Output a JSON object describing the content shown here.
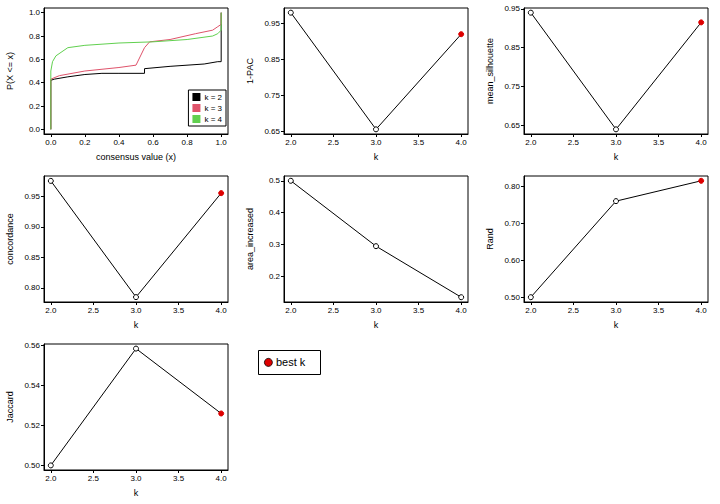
{
  "chart_data": [
    {
      "type": "line",
      "xlabel": "consensus value (x)",
      "ylabel": "P(X <= x)",
      "xlim": [
        -0.04,
        1.04
      ],
      "ylim": [
        -0.04,
        1.04
      ],
      "xticks": [
        {
          "value": 0,
          "label": "0.0"
        },
        0.2,
        0.4,
        0.6,
        0.8,
        {
          "value": 1,
          "label": "1.0"
        }
      ],
      "yticks": [
        {
          "value": 0,
          "label": "0.0"
        },
        0.2,
        0.4,
        0.6,
        0.8,
        {
          "value": 1,
          "label": "1.0"
        }
      ],
      "legend": "bottom right",
      "grid": false,
      "series": [
        {
          "name": "k = 2",
          "color": "#000000",
          "x": [
            0,
            0,
            0.02,
            0.1,
            0.2,
            0.3,
            0.4,
            0.5,
            0.55,
            0.55,
            0.7,
            0.9,
            0.98,
            1,
            1
          ],
          "values": [
            0,
            0.42,
            0.43,
            0.45,
            0.47,
            0.48,
            0.48,
            0.48,
            0.48,
            0.52,
            0.54,
            0.56,
            0.58,
            0.58,
            1.0
          ]
        },
        {
          "name": "k = 3",
          "color": "#df536b",
          "x": [
            0,
            0,
            0.05,
            0.2,
            0.4,
            0.5,
            0.55,
            0.58,
            0.7,
            0.85,
            0.95,
            0.98,
            1,
            1
          ],
          "values": [
            0,
            0.43,
            0.46,
            0.5,
            0.53,
            0.55,
            0.7,
            0.75,
            0.77,
            0.82,
            0.85,
            0.88,
            0.9,
            1.0
          ]
        },
        {
          "name": "k = 4",
          "color": "#61d04f",
          "x": [
            0,
            0,
            0.01,
            0.03,
            0.1,
            0.2,
            0.4,
            0.6,
            0.8,
            0.95,
            0.98,
            1,
            1
          ],
          "values": [
            0,
            0.5,
            0.58,
            0.63,
            0.7,
            0.72,
            0.74,
            0.75,
            0.77,
            0.8,
            0.82,
            0.85,
            1.0
          ]
        }
      ]
    },
    {
      "type": "line",
      "xlabel": "k",
      "ylabel": "1-PAC",
      "xlim": [
        1.92,
        4.08
      ],
      "ylim": [
        0.642,
        0.993
      ],
      "xticks": [
        {
          "value": 2,
          "label": "2.0"
        },
        2.5,
        {
          "value": 3,
          "label": "3.0"
        },
        3.5,
        {
          "value": 4,
          "label": "4.0"
        }
      ],
      "yticks": [
        0.65,
        0.75,
        0.85,
        0.95
      ],
      "grid": false,
      "series": [
        {
          "color": "#000000",
          "marker": "circle",
          "x": [
            2,
            3,
            4
          ],
          "values": [
            0.98,
            0.655,
            0.92
          ],
          "colors": [
            "#000000",
            "#000000",
            "#dd0000"
          ]
        }
      ]
    },
    {
      "type": "line",
      "xlabel": "k",
      "ylabel": "mean_silhouette",
      "xlim": [
        1.92,
        4.08
      ],
      "ylim": [
        0.628,
        0.952
      ],
      "xticks": [
        {
          "value": 2,
          "label": "2.0"
        },
        2.5,
        {
          "value": 3,
          "label": "3.0"
        },
        3.5,
        {
          "value": 4,
          "label": "4.0"
        }
      ],
      "yticks": [
        0.65,
        0.75,
        0.85,
        0.95
      ],
      "grid": false,
      "series": [
        {
          "color": "#000000",
          "marker": "circle",
          "x": [
            2,
            3,
            4
          ],
          "values": [
            0.94,
            0.64,
            0.915
          ],
          "colors": [
            "#000000",
            "#000000",
            "#dd0000"
          ]
        }
      ]
    },
    {
      "type": "line",
      "xlabel": "k",
      "ylabel": "concordance",
      "xlim": [
        1.92,
        4.08
      ],
      "ylim": [
        0.777,
        0.983
      ],
      "xticks": [
        {
          "value": 2,
          "label": "2.0"
        },
        2.5,
        {
          "value": 3,
          "label": "3.0"
        },
        3.5,
        {
          "value": 4,
          "label": "4.0"
        }
      ],
      "yticks": [
        {
          "value": 0.8,
          "label": "0.80"
        },
        0.85,
        {
          "value": 0.9,
          "label": "0.90"
        },
        0.95
      ],
      "grid": false,
      "series": [
        {
          "color": "#000000",
          "marker": "circle",
          "x": [
            2,
            3,
            4
          ],
          "values": [
            0.975,
            0.785,
            0.955
          ],
          "colors": [
            "#000000",
            "#000000",
            "#dd0000"
          ]
        }
      ]
    },
    {
      "type": "line",
      "xlabel": "k",
      "ylabel": "area_increased",
      "xlim": [
        1.92,
        4.08
      ],
      "ylim": [
        0.12,
        0.515
      ],
      "xticks": [
        {
          "value": 2,
          "label": "2.0"
        },
        2.5,
        {
          "value": 3,
          "label": "3.0"
        },
        3.5,
        {
          "value": 4,
          "label": "4.0"
        }
      ],
      "yticks": [
        0.2,
        0.3,
        0.4,
        0.5
      ],
      "grid": false,
      "series": [
        {
          "color": "#000000",
          "marker": "circle",
          "x": [
            2,
            3,
            4
          ],
          "values": [
            0.5,
            0.295,
            0.135
          ],
          "colors": [
            "#000000",
            "#000000",
            "#000000"
          ]
        }
      ]
    },
    {
      "type": "line",
      "xlabel": "k",
      "ylabel": "Rand",
      "xlim": [
        1.92,
        4.08
      ],
      "ylim": [
        0.487,
        0.828
      ],
      "xticks": [
        {
          "value": 2,
          "label": "2.0"
        },
        2.5,
        {
          "value": 3,
          "label": "3.0"
        },
        3.5,
        {
          "value": 4,
          "label": "4.0"
        }
      ],
      "yticks": [
        {
          "value": 0.5,
          "label": "0.50"
        },
        {
          "value": 0.6,
          "label": "0.60"
        },
        {
          "value": 0.7,
          "label": "0.70"
        },
        {
          "value": 0.8,
          "label": "0.80"
        }
      ],
      "grid": false,
      "series": [
        {
          "color": "#000000",
          "marker": "circle",
          "x": [
            2,
            3,
            4
          ],
          "values": [
            0.5,
            0.76,
            0.815
          ],
          "colors": [
            "#000000",
            "#000000",
            "#dd0000"
          ]
        }
      ]
    },
    {
      "type": "line",
      "xlabel": "k",
      "ylabel": "Jaccard",
      "xlim": [
        1.92,
        4.08
      ],
      "ylim": [
        0.4977,
        0.5608
      ],
      "xticks": [
        {
          "value": 2,
          "label": "2.0"
        },
        2.5,
        {
          "value": 3,
          "label": "3.0"
        },
        3.5,
        {
          "value": 4,
          "label": "4.0"
        }
      ],
      "yticks": [
        {
          "value": 0.5,
          "label": "0.50"
        },
        0.52,
        0.54,
        0.56
      ],
      "grid": false,
      "series": [
        {
          "color": "#000000",
          "marker": "circle",
          "x": [
            2,
            3,
            4
          ],
          "values": [
            0.5,
            0.5585,
            0.526
          ],
          "colors": [
            "#000000",
            "#000000",
            "#dd0000"
          ]
        }
      ]
    },
    {
      "type": "legend",
      "labels": [
        "best k"
      ],
      "color": "#dd0000",
      "marker": "circle"
    }
  ]
}
